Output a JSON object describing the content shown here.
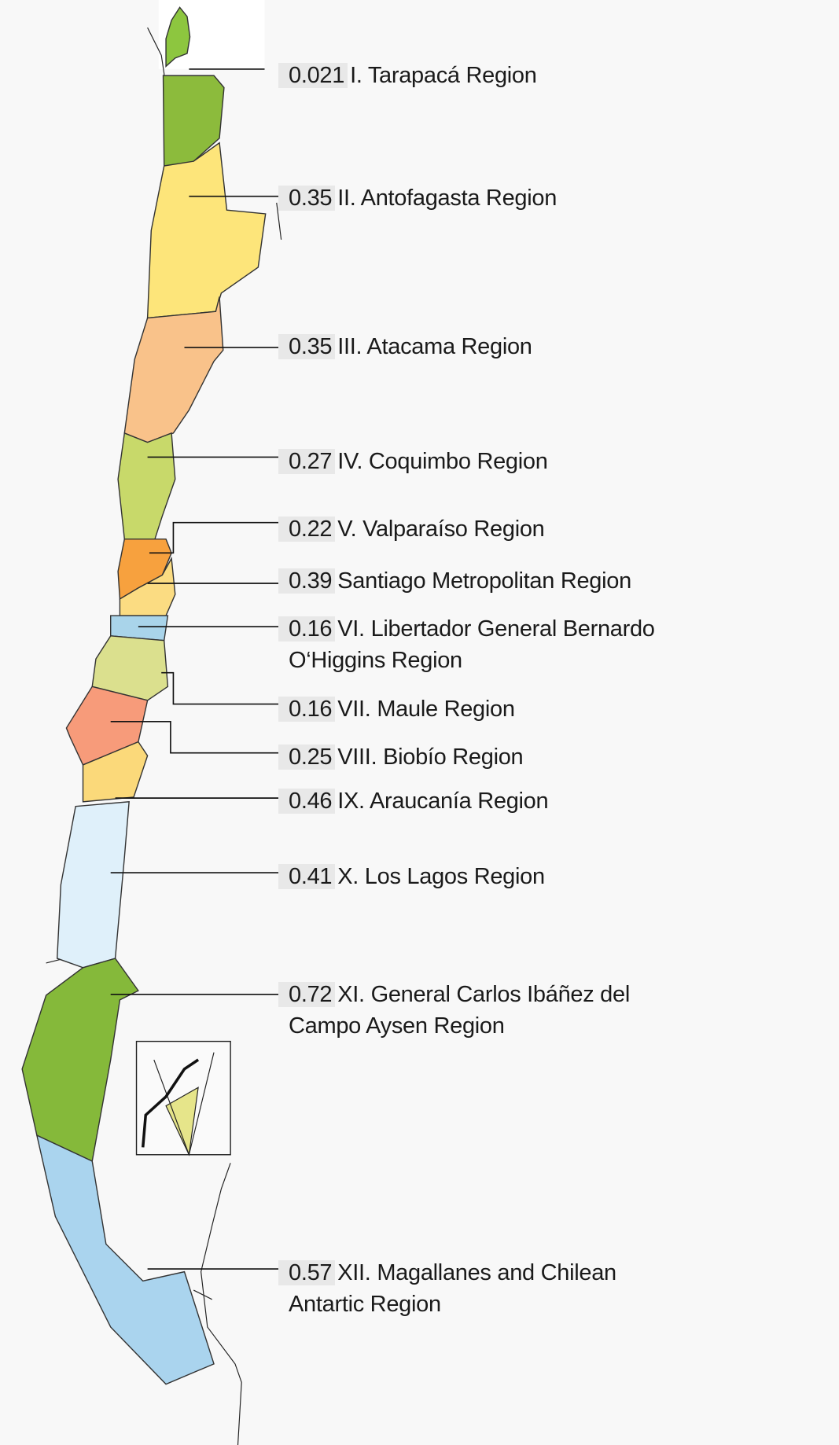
{
  "colors": {
    "background": "#f8f8f8",
    "arica": "#8dc63f",
    "tarapaca": "#8cbb3c",
    "antofagasta": "#fde57a",
    "atacama": "#f9c28a",
    "coquimbo": "#c8d96a",
    "valparaiso": "#f7a13e",
    "santiago": "#fbdc82",
    "ohiggins": "#a9d4ea",
    "maule": "#dbe08e",
    "biobio": "#f79b7a",
    "araucania": "#fbd97a",
    "los_lagos": "#dff0fa",
    "aysen": "#85b93a",
    "magallanes": "#aad4ee",
    "antarctic": "#e6e58a"
  },
  "regions": [
    {
      "value": "0.021",
      "name": "I. Tarapacá Region"
    },
    {
      "value": "0.35",
      "name": "II. Antofagasta Region"
    },
    {
      "value": "0.35",
      "name": "III. Atacama Region"
    },
    {
      "value": "0.27",
      "name": "IV. Coquimbo Region"
    },
    {
      "value": "0.22",
      "name": "V. Valparaíso Region"
    },
    {
      "value": "0.39",
      "name": "Santiago Metropolitan Region"
    },
    {
      "value": "0.16",
      "name": "VI. Libertador General Bernardo",
      "name_line2": "O‘Higgins Region"
    },
    {
      "value": "0.16",
      "name": "VII. Maule Region"
    },
    {
      "value": "0.25",
      "name": "VIII. Biobío Region"
    },
    {
      "value": "0.46",
      "name": "IX. Araucanía Region"
    },
    {
      "value": "0.41",
      "name": "X. Los Lagos Region"
    },
    {
      "value": "0.72",
      "name": "XI. General Carlos Ibáñez del",
      "name_line2": "Campo Aysen Region"
    },
    {
      "value": "0.57",
      "name": "XII. Magallanes and Chilean",
      "name_line2": "Antartic Region"
    }
  ]
}
